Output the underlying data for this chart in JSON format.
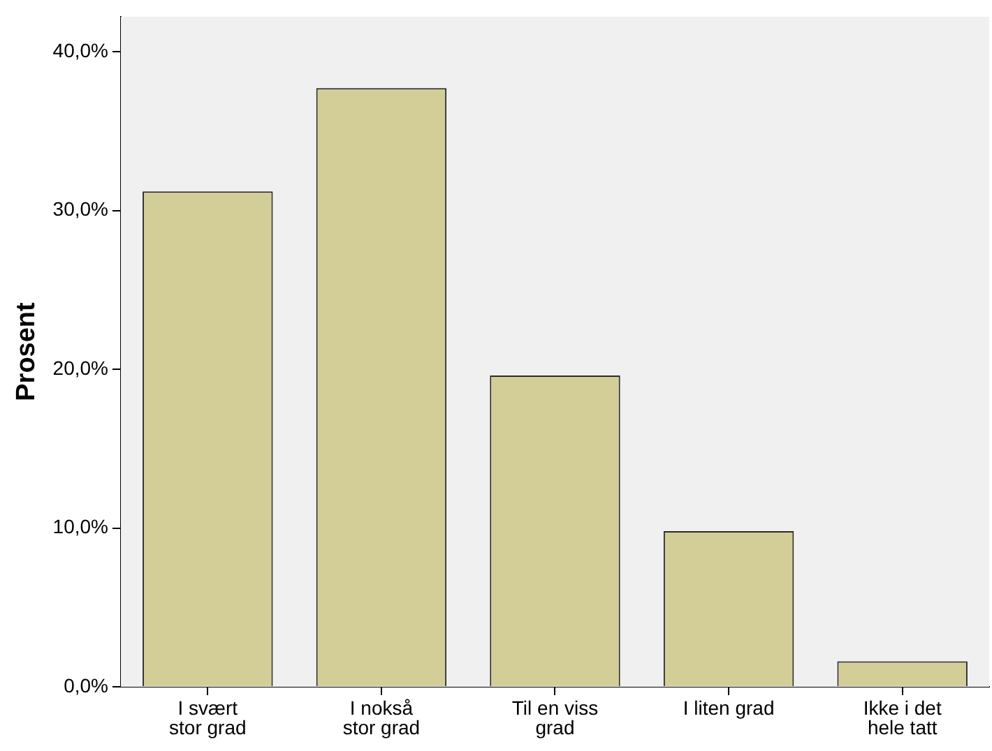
{
  "chart_data": {
    "type": "bar",
    "ylabel": "Prosent",
    "categories": [
      "I svært stor grad",
      "I nokså stor grad",
      "Til en viss grad",
      "I liten grad",
      "Ikke i det hele tatt"
    ],
    "values": [
      31.2,
      37.7,
      19.6,
      9.8,
      1.6
    ],
    "color": "#d3ce97",
    "ylim": [
      0,
      42.2
    ],
    "yticks": [
      {
        "value": 0,
        "label": "0,0%"
      },
      {
        "value": 10,
        "label": "10,0%"
      },
      {
        "value": 20,
        "label": "20,0%"
      },
      {
        "value": 30,
        "label": "30,0%"
      },
      {
        "value": 40,
        "label": "40,0%"
      }
    ],
    "tick_labels": true
  }
}
